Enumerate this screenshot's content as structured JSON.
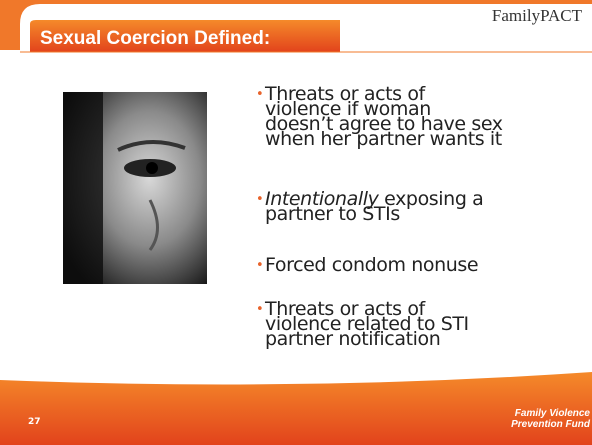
{
  "header": {
    "title": "Sexual Coercion Defined:",
    "logo": "FamilyPACT"
  },
  "bullets": [
    {
      "lines": [
        "Threats or acts of",
        "violence if woman",
        "doesn’t agree to have sex",
        "when her partner wants it"
      ]
    },
    {
      "italic": "Intentionally",
      "lines": [
        "exposing a",
        "partner to STIs"
      ]
    },
    {
      "lines": [
        "Forced condom nonuse"
      ]
    },
    {
      "lines": [
        "Threats or acts of",
        "violence related to STI",
        "partner notification"
      ]
    }
  ],
  "footer": {
    "slide_number": "27",
    "logo_lines": [
      "Family Violence",
      "Prevention Fund"
    ]
  }
}
